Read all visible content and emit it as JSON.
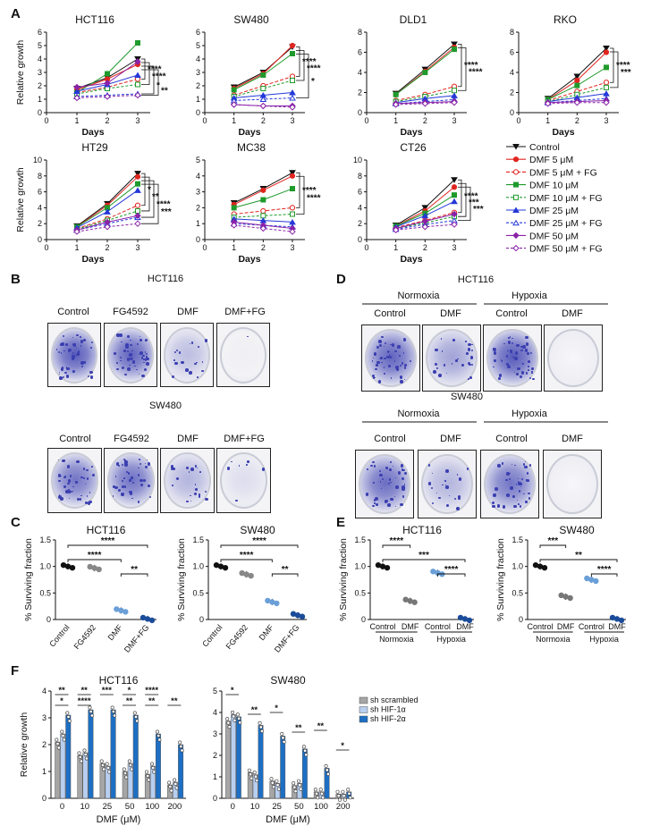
{
  "panel_letters": [
    "A",
    "B",
    "C",
    "D",
    "E",
    "F"
  ],
  "colors": {
    "control": "#111111",
    "dmf5": "#e0241f",
    "dmf10": "#1f9a2c",
    "dmf25": "#2438d8",
    "dmf50": "#8a22a8",
    "bar_gray": "#a6a6a6",
    "bar_light": "#b8cff0",
    "bar_dark": "#1d6fc4",
    "stain": "#3b3fb0"
  },
  "legend_A": [
    "Control",
    "DMF 5 μM",
    "DMF 5 μM + FG",
    "DMF 10 μM",
    "DMF 10 μM + FG",
    "DMF 25 μM",
    "DMF 25 μM + FG",
    "DMF 50 μM",
    "DMF 50 μM + FG"
  ],
  "chart_data": [
    {
      "panel": "A",
      "type": "line",
      "title": "HCT116",
      "xlabel": "Days",
      "ylabel": "Relative growth",
      "x": [
        1,
        2,
        3
      ],
      "ylim": [
        0,
        6
      ],
      "yticks": [
        0,
        1,
        2,
        3,
        4,
        5,
        6
      ],
      "sig": [
        "****",
        "****",
        "*",
        "**"
      ],
      "series": [
        {
          "name": "Control",
          "values": [
            1.8,
            2.6,
            4.0
          ]
        },
        {
          "name": "DMF 5 μM",
          "values": [
            1.7,
            2.5,
            3.6
          ]
        },
        {
          "name": "DMF 5 μM + FG",
          "values": [
            1.5,
            1.9,
            2.5
          ]
        },
        {
          "name": "DMF 10 μM",
          "values": [
            1.5,
            2.9,
            5.2
          ]
        },
        {
          "name": "DMF 10 μM + FG",
          "values": [
            1.4,
            1.8,
            2.1
          ]
        },
        {
          "name": "DMF 25 μM",
          "values": [
            1.6,
            2.1,
            2.8
          ]
        },
        {
          "name": "DMF 25 μM + FG",
          "values": [
            1.2,
            1.3,
            1.4
          ]
        },
        {
          "name": "DMF 50 μM",
          "values": [
            1.9,
            2.2,
            3.8
          ]
        },
        {
          "name": "DMF 50 μM + FG",
          "values": [
            1.1,
            1.2,
            1.3
          ]
        }
      ]
    },
    {
      "panel": "A",
      "type": "line",
      "title": "SW480",
      "xlabel": "Days",
      "ylabel": "",
      "x": [
        1,
        2,
        3
      ],
      "ylim": [
        0,
        6
      ],
      "yticks": [
        0,
        1,
        2,
        3,
        4,
        5,
        6
      ],
      "sig": [
        "****",
        "****",
        "*"
      ],
      "series": [
        {
          "name": "Control",
          "values": [
            1.9,
            3.0,
            4.9
          ]
        },
        {
          "name": "DMF 5 μM",
          "values": [
            1.8,
            2.9,
            5.0
          ]
        },
        {
          "name": "DMF 5 μM + FG",
          "values": [
            1.3,
            2.0,
            2.7
          ]
        },
        {
          "name": "DMF 10 μM",
          "values": [
            1.7,
            2.8,
            4.4
          ]
        },
        {
          "name": "DMF 10 μM + FG",
          "values": [
            1.2,
            1.8,
            2.4
          ]
        },
        {
          "name": "DMF 25 μM",
          "values": [
            1.1,
            1.3,
            1.5
          ]
        },
        {
          "name": "DMF 25 μM + FG",
          "values": [
            0.9,
            1.0,
            1.1
          ]
        },
        {
          "name": "DMF 50 μM",
          "values": [
            0.6,
            0.5,
            0.5
          ]
        },
        {
          "name": "DMF 50 μM + FG",
          "values": [
            0.6,
            0.5,
            0.4
          ]
        }
      ]
    },
    {
      "panel": "A",
      "type": "line",
      "title": "DLD1",
      "xlabel": "Days",
      "ylabel": "",
      "x": [
        1,
        2,
        3
      ],
      "ylim": [
        0,
        8
      ],
      "yticks": [
        0,
        2,
        4,
        6,
        8
      ],
      "sig": [
        "****",
        "****"
      ],
      "series": [
        {
          "name": "Control",
          "values": [
            1.9,
            4.3,
            6.8
          ]
        },
        {
          "name": "DMF 5 μM",
          "values": [
            1.8,
            4.1,
            6.5
          ]
        },
        {
          "name": "DMF 5 μM + FG",
          "values": [
            1.2,
            1.8,
            2.6
          ]
        },
        {
          "name": "DMF 10 μM",
          "values": [
            1.8,
            4.0,
            6.3
          ]
        },
        {
          "name": "DMF 10 μM + FG",
          "values": [
            1.1,
            1.6,
            2.2
          ]
        },
        {
          "name": "DMF 25 μM",
          "values": [
            1.0,
            1.4,
            1.7
          ]
        },
        {
          "name": "DMF 25 μM + FG",
          "values": [
            0.9,
            1.1,
            1.3
          ]
        },
        {
          "name": "DMF 50 μM",
          "values": [
            0.9,
            1.0,
            1.1
          ]
        },
        {
          "name": "DMF 50 μM + FG",
          "values": [
            0.8,
            0.9,
            1.0
          ]
        }
      ]
    },
    {
      "panel": "A",
      "type": "line",
      "title": "RKO",
      "xlabel": "Days",
      "ylabel": "",
      "x": [
        1,
        2,
        3
      ],
      "ylim": [
        0,
        8
      ],
      "yticks": [
        0,
        2,
        4,
        6,
        8
      ],
      "sig": [
        "****",
        "***"
      ],
      "series": [
        {
          "name": "Control",
          "values": [
            1.4,
            3.6,
            6.4
          ]
        },
        {
          "name": "DMF 5 μM",
          "values": [
            1.3,
            3.2,
            6.0
          ]
        },
        {
          "name": "DMF 5 μM + FG",
          "values": [
            1.2,
            2.1,
            3.0
          ]
        },
        {
          "name": "DMF 10 μM",
          "values": [
            1.3,
            2.7,
            4.5
          ]
        },
        {
          "name": "DMF 10 μM + FG",
          "values": [
            1.1,
            1.8,
            2.5
          ]
        },
        {
          "name": "DMF 25 μM",
          "values": [
            1.1,
            1.5,
            1.9
          ]
        },
        {
          "name": "DMF 25 μM + FG",
          "values": [
            1.0,
            1.2,
            1.4
          ]
        },
        {
          "name": "DMF 50 μM",
          "values": [
            1.0,
            1.1,
            1.2
          ]
        },
        {
          "name": "DMF 50 μM + FG",
          "values": [
            0.9,
            1.0,
            1.0
          ]
        }
      ]
    },
    {
      "panel": "A",
      "type": "line",
      "title": "HT29",
      "xlabel": "Days",
      "ylabel": "Relative growth",
      "x": [
        1,
        2,
        3
      ],
      "ylim": [
        0,
        10
      ],
      "yticks": [
        0,
        2,
        4,
        6,
        8,
        10
      ],
      "sig": [
        "*",
        "**",
        "****",
        "***"
      ],
      "series": [
        {
          "name": "Control",
          "values": [
            1.7,
            4.5,
            8.3
          ]
        },
        {
          "name": "DMF 5 μM",
          "values": [
            1.6,
            4.3,
            7.9
          ]
        },
        {
          "name": "DMF 5 μM + FG",
          "values": [
            1.4,
            2.6,
            4.3
          ]
        },
        {
          "name": "DMF 10 μM",
          "values": [
            1.6,
            4.0,
            7.0
          ]
        },
        {
          "name": "DMF 10 μM + FG",
          "values": [
            1.3,
            2.4,
            3.6
          ]
        },
        {
          "name": "DMF 25 μM",
          "values": [
            1.5,
            3.5,
            6.2
          ]
        },
        {
          "name": "DMF 25 μM + FG",
          "values": [
            1.2,
            2.0,
            2.8
          ]
        },
        {
          "name": "DMF 50 μM",
          "values": [
            1.2,
            2.2,
            3.0
          ]
        },
        {
          "name": "DMF 50 μM + FG",
          "values": [
            1.0,
            1.6,
            2.0
          ]
        }
      ]
    },
    {
      "panel": "A",
      "type": "line",
      "title": "MC38",
      "xlabel": "Days",
      "ylabel": "",
      "x": [
        1,
        2,
        3
      ],
      "ylim": [
        0,
        5
      ],
      "yticks": [
        0,
        1,
        2,
        3,
        4,
        5
      ],
      "sig": [
        "****",
        "****"
      ],
      "series": [
        {
          "name": "Control",
          "values": [
            2.3,
            3.2,
            4.2
          ]
        },
        {
          "name": "DMF 5 μM",
          "values": [
            2.2,
            3.1,
            4.0
          ]
        },
        {
          "name": "DMF 5 μM + FG",
          "values": [
            1.6,
            1.8,
            2.0
          ]
        },
        {
          "name": "DMF 10 μM",
          "values": [
            2.0,
            2.5,
            3.2
          ]
        },
        {
          "name": "DMF 10 μM + FG",
          "values": [
            1.4,
            1.5,
            1.6
          ]
        },
        {
          "name": "DMF 25 μM",
          "values": [
            1.3,
            1.2,
            1.1
          ]
        },
        {
          "name": "DMF 25 μM + FG",
          "values": [
            1.0,
            0.9,
            0.8
          ]
        },
        {
          "name": "DMF 50 μM",
          "values": [
            1.1,
            0.9,
            0.7
          ]
        },
        {
          "name": "DMF 50 μM + FG",
          "values": [
            0.9,
            0.7,
            0.5
          ]
        }
      ]
    },
    {
      "panel": "A",
      "type": "line",
      "title": "CT26",
      "xlabel": "Days",
      "ylabel": "",
      "x": [
        1,
        2,
        3
      ],
      "ylim": [
        0,
        10
      ],
      "yticks": [
        0,
        2,
        4,
        6,
        8,
        10
      ],
      "sig": [
        "****",
        "***",
        "***"
      ],
      "series": [
        {
          "name": "Control",
          "values": [
            1.8,
            4.0,
            7.5
          ]
        },
        {
          "name": "DMF 5 μM",
          "values": [
            1.7,
            3.6,
            6.6
          ]
        },
        {
          "name": "DMF 5 μM + FG",
          "values": [
            1.5,
            2.4,
            3.4
          ]
        },
        {
          "name": "DMF 10 μM",
          "values": [
            1.7,
            3.3,
            5.6
          ]
        },
        {
          "name": "DMF 10 μM + FG",
          "values": [
            1.4,
            2.1,
            2.9
          ]
        },
        {
          "name": "DMF 25 μM",
          "values": [
            1.6,
            3.0,
            4.8
          ]
        },
        {
          "name": "DMF 25 μM + FG",
          "values": [
            1.3,
            1.9,
            2.4
          ]
        },
        {
          "name": "DMF 50 μM",
          "values": [
            1.4,
            2.3,
            3.2
          ]
        },
        {
          "name": "DMF 50 μM + FG",
          "values": [
            1.2,
            1.6,
            1.9
          ]
        }
      ]
    },
    {
      "panel": "C",
      "type": "scatter",
      "title": "HCT116",
      "ylabel": "% Surviving fraction",
      "ylim": [
        0,
        1.5
      ],
      "yticks": [
        "0",
        "0.5",
        "1.0",
        "1.5"
      ],
      "categories": [
        "Control",
        "FG4592",
        "DMF",
        "DMF+FG"
      ],
      "means": [
        1.0,
        0.97,
        0.17,
        0.01
      ],
      "brackets": [
        {
          "from": 0,
          "to": 3,
          "label": "****"
        },
        {
          "from": 0,
          "to": 2,
          "label": "****"
        },
        {
          "from": 2,
          "to": 3,
          "label": "**"
        }
      ]
    },
    {
      "panel": "C",
      "type": "scatter",
      "title": "SW480",
      "ylabel": "% Surviving fraction",
      "ylim": [
        0,
        1.5
      ],
      "yticks": [
        "0",
        "0.5",
        "1.0",
        "1.5"
      ],
      "categories": [
        "Control",
        "FG4592",
        "DMF",
        "DMF+FG"
      ],
      "means": [
        1.0,
        0.85,
        0.33,
        0.08
      ],
      "brackets": [
        {
          "from": 0,
          "to": 3,
          "label": "****"
        },
        {
          "from": 0,
          "to": 2,
          "label": "****"
        },
        {
          "from": 2,
          "to": 3,
          "label": "**"
        }
      ]
    },
    {
      "panel": "E",
      "type": "scatter",
      "title": "HCT116",
      "ylabel": "% Surviving fraction",
      "ylim": [
        0,
        1.5
      ],
      "yticks": [
        "0",
        "0.5",
        "1.0",
        "1.5"
      ],
      "categories": [
        "Control",
        "DMF",
        "Control",
        "DMF"
      ],
      "groups": [
        "Normoxia",
        "Hypoxia"
      ],
      "means": [
        1.0,
        0.35,
        0.88,
        0.01
      ],
      "brackets": [
        {
          "from": 0,
          "to": 1,
          "label": "****"
        },
        {
          "from": 0,
          "to": 3,
          "label": "***"
        },
        {
          "from": 2,
          "to": 3,
          "label": "****"
        }
      ]
    },
    {
      "panel": "E",
      "type": "scatter",
      "title": "SW480",
      "ylabel": "% Surviving fraction",
      "ylim": [
        0,
        1.5
      ],
      "yticks": [
        "0",
        "0.5",
        "1.0",
        "1.5"
      ],
      "categories": [
        "Control",
        "DMF",
        "Control",
        "DMF"
      ],
      "groups": [
        "Normoxia",
        "Hypoxia"
      ],
      "means": [
        1.0,
        0.43,
        0.75,
        0.01
      ],
      "brackets": [
        {
          "from": 0,
          "to": 1,
          "label": "***"
        },
        {
          "from": 0,
          "to": 3,
          "label": "**"
        },
        {
          "from": 2,
          "to": 3,
          "label": "****"
        }
      ]
    },
    {
      "panel": "F",
      "type": "bar",
      "title": "HCT116",
      "xlabel": "DMF (μM)",
      "ylabel": "Relative growth",
      "ylim": [
        0,
        4
      ],
      "yticks": [
        0,
        1,
        2,
        3,
        4
      ],
      "categories": [
        "0",
        "10",
        "25",
        "50",
        "100",
        "200"
      ],
      "series": [
        {
          "name": "sh scrambled",
          "values": [
            2.1,
            1.6,
            1.3,
            1.0,
            0.9,
            0.5
          ]
        },
        {
          "name": "sh HIF-1α",
          "values": [
            2.4,
            1.7,
            1.2,
            1.3,
            1.2,
            0.6
          ]
        },
        {
          "name": "sh HIF-2α",
          "values": [
            3.1,
            3.3,
            3.3,
            3.1,
            2.4,
            2.0
          ]
        }
      ],
      "sig": [
        "**",
        "*",
        "**",
        "****",
        "***",
        "**",
        "*",
        "**",
        "****",
        "**"
      ]
    },
    {
      "panel": "F",
      "type": "bar",
      "title": "SW480",
      "xlabel": "DMF (μM)",
      "ylabel": "",
      "ylim": [
        0,
        5
      ],
      "yticks": [
        0,
        1,
        2,
        3,
        4,
        5
      ],
      "categories": [
        "0",
        "10",
        "25",
        "50",
        "100",
        "200"
      ],
      "series": [
        {
          "name": "sh scrambled",
          "values": [
            3.6,
            1.2,
            0.8,
            0.6,
            0.3,
            0.2
          ]
        },
        {
          "name": "sh HIF-1α",
          "values": [
            3.9,
            1.1,
            0.7,
            0.7,
            0.3,
            0.2
          ]
        },
        {
          "name": "sh HIF-2α",
          "values": [
            3.8,
            3.4,
            2.9,
            2.3,
            1.4,
            0.3
          ]
        }
      ],
      "sig": [
        "*",
        "**",
        "*",
        "**",
        "**",
        "*"
      ]
    }
  ],
  "panel_B": {
    "title1": "HCT116",
    "title2": "SW480",
    "labels": [
      "Control",
      "FG4592",
      "DMF",
      "DMF+FG"
    ],
    "density": [
      0.85,
      0.8,
      0.3,
      0.02
    ],
    "density2": [
      0.7,
      0.72,
      0.35,
      0.12
    ]
  },
  "panel_D": {
    "title1": "HCT116",
    "title2": "SW480",
    "normoxia": "Normoxia",
    "hypoxia": "Hypoxia",
    "labels": [
      "Control",
      "DMF",
      "Control",
      "DMF"
    ],
    "density": [
      0.8,
      0.45,
      0.85,
      0.0
    ],
    "density2": [
      0.75,
      0.35,
      0.7,
      0.0
    ]
  }
}
